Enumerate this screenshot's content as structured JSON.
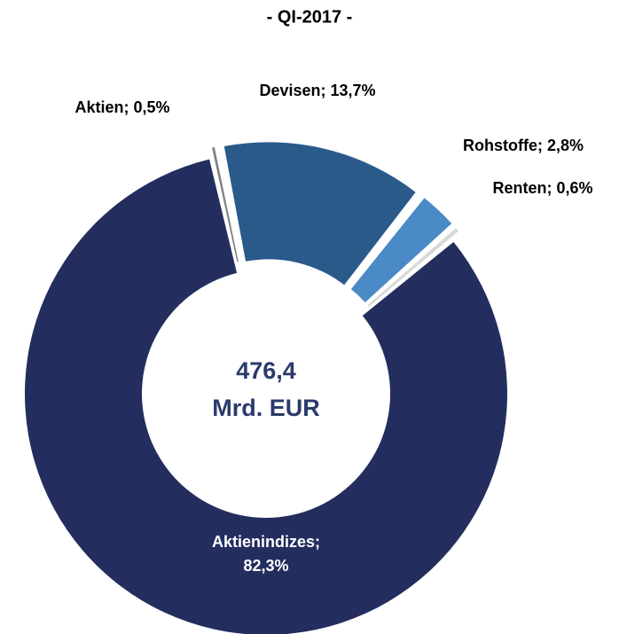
{
  "chart_data": {
    "type": "donut",
    "title": "- QI-2017 -",
    "values": [
      0.5,
      13.7,
      2.8,
      0.6,
      82.3
    ],
    "value_labels": [
      "Aktien; 0,5%",
      "Devisen; 13,7%",
      "Rohstoffe; 2,8%",
      "Renten; 0,6%",
      "Aktienindizes;\n82,3%"
    ],
    "colors": [
      "#808080",
      "#2a5a8a",
      "#4a8ac6",
      "#d9d9d9",
      "#232e5e"
    ],
    "center_label": [
      "476,4",
      "Mrd. EUR"
    ]
  }
}
